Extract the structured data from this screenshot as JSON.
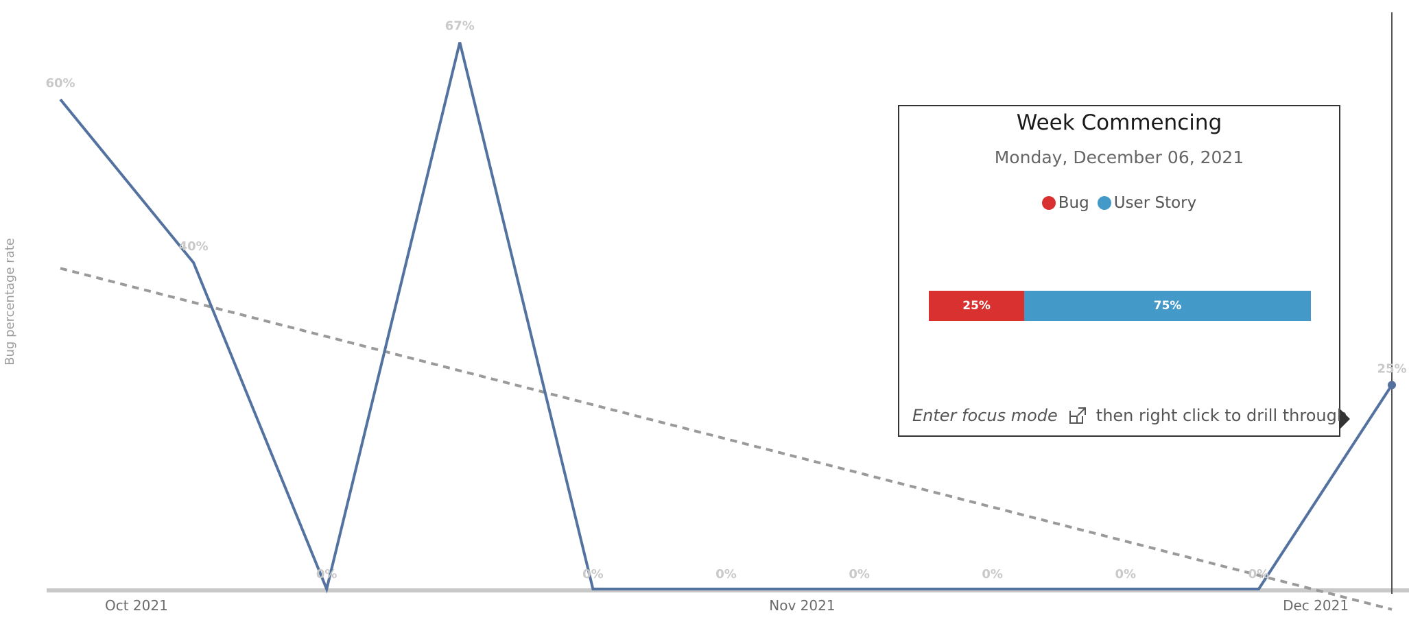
{
  "chart_data": {
    "type": "line",
    "ylabel": "Bug percentage rate",
    "xlabel": "",
    "x_tick_labels": [
      "Oct 2021",
      "Nov 2021",
      "Dec 2021"
    ],
    "ylim": [
      0,
      0.7
    ],
    "grid": false,
    "series": [
      {
        "x": [
          "2021-09-27",
          "2021-10-04",
          "2021-10-11",
          "2021-10-18",
          "2021-10-25",
          "2021-11-01",
          "2021-11-08",
          "2021-11-15",
          "2021-11-22",
          "2021-11-29",
          "2021-12-06"
        ],
        "values": [
          0.6,
          0.4,
          0.0,
          0.67,
          0.0,
          0.0,
          0.0,
          0.0,
          0.0,
          0.0,
          0.25
        ],
        "labels": [
          "60%",
          "40%",
          "0%",
          "67%",
          "0%",
          "0%",
          "0%",
          "0%",
          "0%",
          "0%",
          "25%"
        ]
      }
    ],
    "trendline": {
      "style": "dashed",
      "x": [
        "2021-09-27",
        "2021-12-06"
      ],
      "values": [
        0.393,
        -0.025
      ]
    },
    "highlight_x": "2021-12-06"
  },
  "tooltip": {
    "title": "Week Commencing",
    "subtitle": "Monday, December 06, 2021",
    "legend": [
      {
        "label": "Bug",
        "color": "#d93030"
      },
      {
        "label": "User Story",
        "color": "#4399c8"
      }
    ],
    "bar": [
      {
        "label": "25%",
        "value": 0.25,
        "color": "#d93030"
      },
      {
        "label": "75%",
        "value": 0.75,
        "color": "#4399c8"
      }
    ],
    "footer_italic": "Enter focus mode",
    "focus_icon": "focus-mode-icon",
    "footer_rest": "then right click to drill through"
  },
  "colors": {
    "line": "#5472a0",
    "trend": "#9a9a9a",
    "axis": "#c8c8c8",
    "highlight_line": "#555555"
  }
}
